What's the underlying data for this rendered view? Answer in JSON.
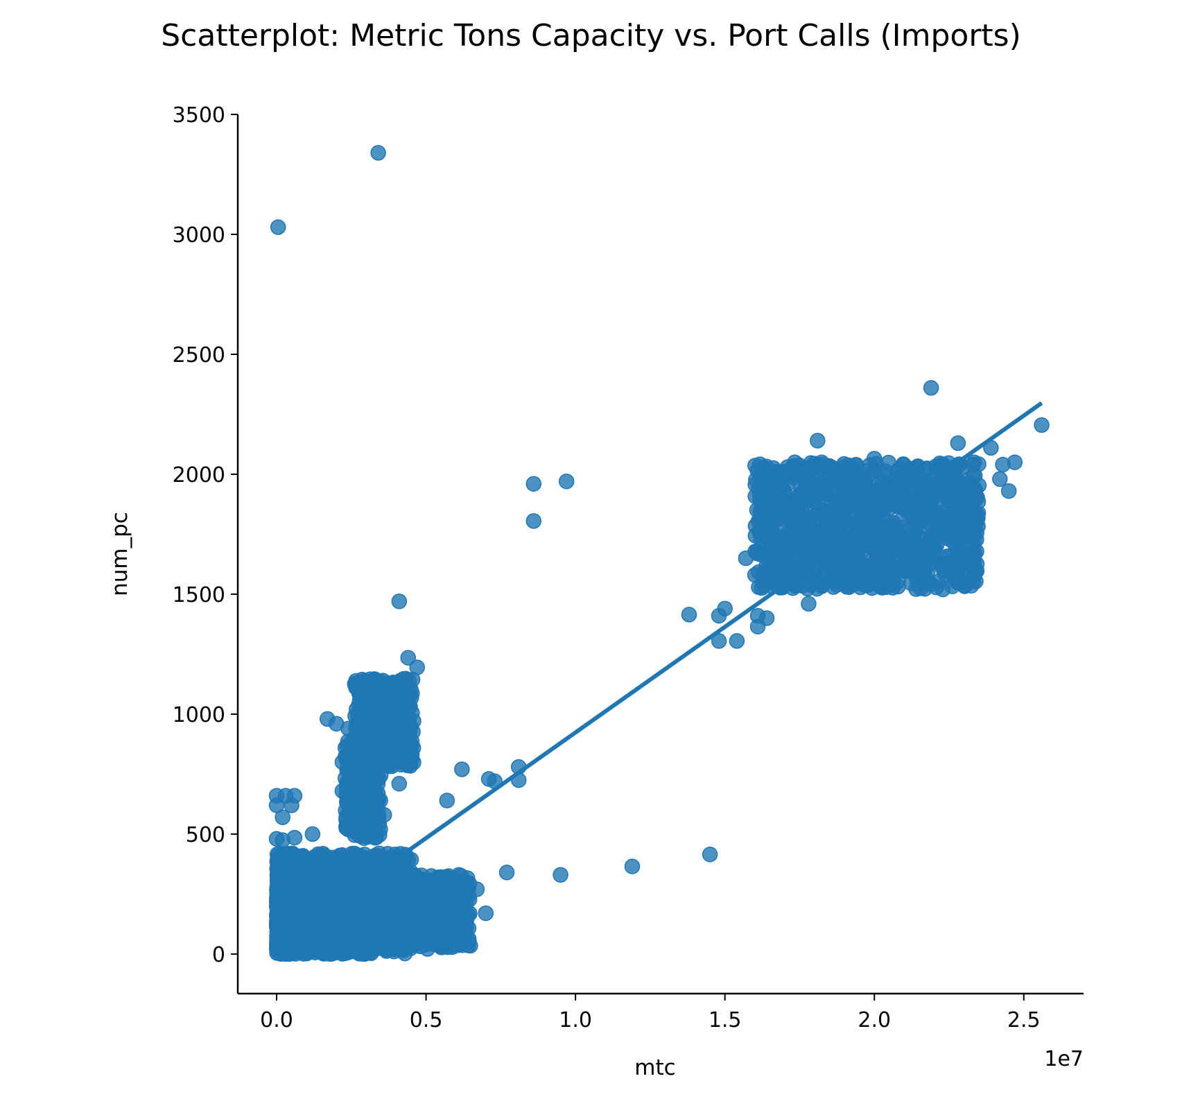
{
  "chart_data": {
    "type": "scatter",
    "title": "Scatterplot: Metric Tons Capacity vs. Port Calls (Imports)",
    "xlabel": "mtc",
    "ylabel": "num_pc",
    "x_offset_text": "1e7",
    "x_scale_factor": 10000000,
    "xlim": [
      -1300000,
      27000000
    ],
    "ylim": [
      -165,
      3500
    ],
    "x_ticks": [
      0,
      5000000,
      10000000,
      15000000,
      20000000,
      25000000
    ],
    "x_tick_labels": [
      "0.0",
      "0.5",
      "1.0",
      "1.5",
      "2.0",
      "2.5"
    ],
    "y_ticks": [
      0,
      500,
      1000,
      1500,
      2000,
      2500,
      3000,
      3500
    ],
    "y_tick_labels": [
      "0",
      "500",
      "1000",
      "1500",
      "2000",
      "2500",
      "3000",
      "3500"
    ],
    "grid": false,
    "legend": "none",
    "point_color": "#1f77b4",
    "line_color": "#1f77b4",
    "regression_line": {
      "x": [
        0,
        25600000
      ],
      "y": [
        43,
        2297
      ]
    },
    "points": [
      [
        50000,
        3030
      ],
      [
        3400000,
        3340
      ],
      [
        4100000,
        1470
      ],
      [
        8600000,
        1960
      ],
      [
        8600000,
        1805
      ],
      [
        9700000,
        1970
      ],
      [
        4400000,
        1235
      ],
      [
        4700000,
        1195
      ],
      [
        2800000,
        1125
      ],
      [
        1700000,
        980
      ],
      [
        2000000,
        960
      ],
      [
        2400000,
        940
      ],
      [
        2300000,
        860
      ],
      [
        2200000,
        800
      ],
      [
        2200000,
        680
      ],
      [
        4100000,
        710
      ],
      [
        3300000,
        680
      ],
      [
        6200000,
        770
      ],
      [
        8100000,
        780
      ],
      [
        8100000,
        725
      ],
      [
        7100000,
        730
      ],
      [
        7300000,
        720
      ],
      [
        5700000,
        640
      ],
      [
        3600000,
        580
      ],
      [
        2500000,
        560
      ],
      [
        0,
        660
      ],
      [
        300000,
        660
      ],
      [
        600000,
        660
      ],
      [
        500000,
        620
      ],
      [
        0,
        620
      ],
      [
        200000,
        570
      ],
      [
        600000,
        485
      ],
      [
        0,
        480
      ],
      [
        200000,
        475
      ],
      [
        1200000,
        500
      ],
      [
        1100000,
        390
      ],
      [
        7700000,
        340
      ],
      [
        9500000,
        330
      ],
      [
        11900000,
        365
      ],
      [
        14500000,
        415
      ],
      [
        7000000,
        170
      ],
      [
        6700000,
        270
      ],
      [
        6100000,
        330
      ],
      [
        13800000,
        1415
      ],
      [
        14800000,
        1410
      ],
      [
        15000000,
        1440
      ],
      [
        14800000,
        1305
      ],
      [
        15400000,
        1305
      ],
      [
        16100000,
        1365
      ],
      [
        16100000,
        1410
      ],
      [
        16400000,
        1400
      ],
      [
        15700000,
        1650
      ],
      [
        16500000,
        1760
      ],
      [
        16600000,
        1875
      ],
      [
        17100000,
        2030
      ],
      [
        18100000,
        2140
      ],
      [
        17200000,
        1840
      ],
      [
        17800000,
        1460
      ],
      [
        19500000,
        1975
      ],
      [
        20000000,
        2065
      ],
      [
        21900000,
        2360
      ],
      [
        22800000,
        2130
      ],
      [
        23900000,
        2110
      ],
      [
        24300000,
        2040
      ],
      [
        24700000,
        2050
      ],
      [
        25600000,
        2205
      ],
      [
        24500000,
        1930
      ],
      [
        24200000,
        1980
      ],
      [
        22800000,
        1740
      ],
      [
        22400000,
        1750
      ],
      [
        21000000,
        1680
      ],
      [
        16300000,
        1720
      ],
      [
        17600000,
        1610
      ]
    ],
    "clusters": [
      {
        "x": [
          0,
          600000
        ],
        "y": [
          0,
          420
        ],
        "n": 700
      },
      {
        "x": [
          0,
          3000000
        ],
        "y": [
          0,
          250
        ],
        "n": 900
      },
      {
        "x": [
          500000,
          4500000
        ],
        "y": [
          0,
          420
        ],
        "n": 700
      },
      {
        "x": [
          2200000,
          6500000
        ],
        "y": [
          20,
          330
        ],
        "n": 600
      },
      {
        "x": [
          2600000,
          4600000
        ],
        "y": [
          780,
          1150
        ],
        "n": 300
      },
      {
        "x": [
          2300000,
          3500000
        ],
        "y": [
          480,
          900
        ],
        "n": 220
      },
      {
        "x": [
          16000000,
          23500000
        ],
        "y": [
          1520,
          2050
        ],
        "n": 900
      }
    ]
  }
}
